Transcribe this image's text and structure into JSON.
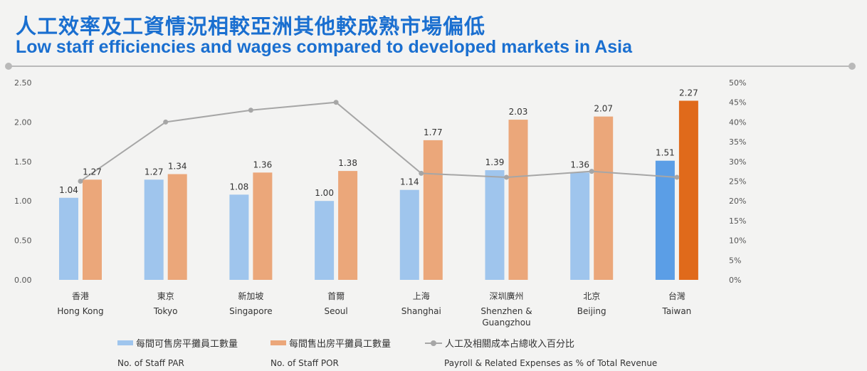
{
  "header": {
    "title_zh": "人工效率及工資情況相較亞洲其他較成熟市場偏低",
    "title_en": "Low staff efficiencies and wages compared to developed markets in Asia"
  },
  "colors": {
    "title": "#1a6fd0",
    "par": "#9fc5ed",
    "por": "#eba77a",
    "par_highlight": "#5b9ee6",
    "por_highlight": "#e06a1b",
    "line": "#a6a6a6"
  },
  "chart_data": {
    "type": "bar",
    "categories_zh": [
      "香港",
      "東京",
      "新加坡",
      "首爾",
      "上海",
      "深圳廣州",
      "北京",
      "台灣"
    ],
    "categories_en": [
      [
        "Hong Kong"
      ],
      [
        "Tokyo"
      ],
      [
        "Singapore"
      ],
      [
        "Seoul"
      ],
      [
        "Shanghai"
      ],
      [
        "Shenzhen &",
        "Guangzhou"
      ],
      [
        "Beijing"
      ],
      [
        "Taiwan"
      ]
    ],
    "highlight_index": 7,
    "series": [
      {
        "name_zh": "每間可售房平攤員工數量",
        "name_en": "No. of Staff PAR",
        "type": "bar",
        "axis": "left",
        "values": [
          1.04,
          1.27,
          1.08,
          1.0,
          1.14,
          1.39,
          1.36,
          1.51
        ],
        "labels": [
          "1.04",
          "1.27",
          "1.08",
          "1.00",
          "1.14",
          "1.39",
          "1.36",
          "1.51"
        ]
      },
      {
        "name_zh": "每間售出房平攤員工數量",
        "name_en": "No. of Staff POR",
        "type": "bar",
        "axis": "left",
        "values": [
          1.27,
          1.34,
          1.36,
          1.38,
          1.77,
          2.03,
          2.07,
          2.27
        ],
        "labels": [
          "1.27",
          "1.34",
          "1.36",
          "1.38",
          "1.77",
          "2.03",
          "2.07",
          "2.27"
        ]
      },
      {
        "name_zh": "人工及相關成本占總收入百分比",
        "name_en": "Payroll & Related Expenses as % of Total Revenue",
        "type": "line",
        "axis": "right",
        "values": [
          25,
          40,
          43,
          45,
          27,
          26,
          27.5,
          26
        ]
      }
    ],
    "y_left": {
      "min": 0,
      "max": 2.5,
      "ticks": [
        "0.00",
        "0.50",
        "1.00",
        "1.50",
        "2.00",
        "2.50"
      ]
    },
    "y_right": {
      "min": 0,
      "max": 50,
      "ticks": [
        "0%",
        "5%",
        "10%",
        "15%",
        "20%",
        "25%",
        "30%",
        "35%",
        "40%",
        "45%",
        "50%"
      ]
    },
    "grid": false,
    "legend_position": "bottom"
  }
}
